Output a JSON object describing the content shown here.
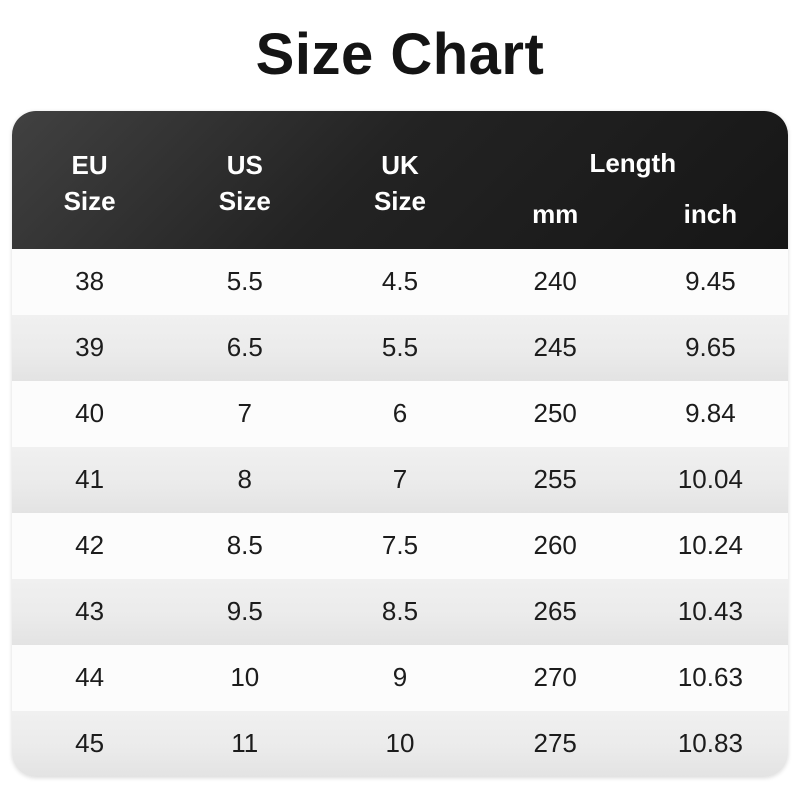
{
  "page": {
    "title": "Size Chart"
  },
  "colors": {
    "header_bg_top": "#414141",
    "header_bg_bottom": "#161616",
    "header_text": "#ffffff",
    "row_odd_bg": "#fcfcfc",
    "row_even_bg": "#ebebeb",
    "row_text": "#1c1c1c",
    "title_text": "#141414"
  },
  "table": {
    "header": {
      "eu": [
        "EU",
        "Size"
      ],
      "us": [
        "US",
        "Size"
      ],
      "uk": [
        "UK",
        "Size"
      ],
      "length": "Length",
      "mm": "mm",
      "inch": "inch"
    },
    "rows": [
      {
        "eu": "38",
        "us": "5.5",
        "uk": "4.5",
        "mm": "240",
        "inch": "9.45"
      },
      {
        "eu": "39",
        "us": "6.5",
        "uk": "5.5",
        "mm": "245",
        "inch": "9.65"
      },
      {
        "eu": "40",
        "us": "7",
        "uk": "6",
        "mm": "250",
        "inch": "9.84"
      },
      {
        "eu": "41",
        "us": "8",
        "uk": "7",
        "mm": "255",
        "inch": "10.04"
      },
      {
        "eu": "42",
        "us": "8.5",
        "uk": "7.5",
        "mm": "260",
        "inch": "10.24"
      },
      {
        "eu": "43",
        "us": "9.5",
        "uk": "8.5",
        "mm": "265",
        "inch": "10.43"
      },
      {
        "eu": "44",
        "us": "10",
        "uk": "9",
        "mm": "270",
        "inch": "10.63"
      },
      {
        "eu": "45",
        "us": "11",
        "uk": "10",
        "mm": "275",
        "inch": "10.83"
      }
    ]
  },
  "chart_data": {
    "type": "table",
    "title": "Size Chart",
    "columns": [
      "EU Size",
      "US Size",
      "UK Size",
      "Length mm",
      "Length inch"
    ],
    "rows": [
      [
        "38",
        "5.5",
        "4.5",
        "240",
        "9.45"
      ],
      [
        "39",
        "6.5",
        "5.5",
        "245",
        "9.65"
      ],
      [
        "40",
        "7",
        "6",
        "250",
        "9.84"
      ],
      [
        "41",
        "8",
        "7",
        "255",
        "10.04"
      ],
      [
        "42",
        "8.5",
        "7.5",
        "260",
        "10.24"
      ],
      [
        "43",
        "9.5",
        "8.5",
        "265",
        "10.43"
      ],
      [
        "44",
        "10",
        "9",
        "270",
        "10.63"
      ],
      [
        "45",
        "11",
        "10",
        "275",
        "10.83"
      ]
    ]
  }
}
